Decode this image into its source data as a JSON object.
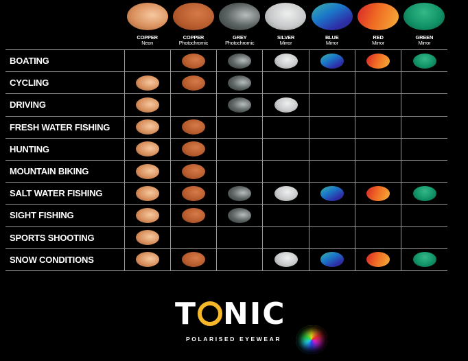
{
  "lenses": [
    {
      "name": "COPPER",
      "type": "Neon",
      "class": "copper-neon"
    },
    {
      "name": "COPPER",
      "type": "Photochromic",
      "class": "copper-photo"
    },
    {
      "name": "GREY",
      "type": "Photochromic",
      "class": "grey-photo"
    },
    {
      "name": "SILVER",
      "type": "Mirror",
      "class": "silver"
    },
    {
      "name": "BLUE",
      "type": "Mirror",
      "class": "blue"
    },
    {
      "name": "RED",
      "type": "Mirror",
      "class": "red"
    },
    {
      "name": "GREEN",
      "type": "Mirror",
      "class": "green"
    }
  ],
  "activities": [
    {
      "label": "BOATING",
      "lenses": [
        0,
        1,
        1,
        1,
        1,
        1,
        1
      ]
    },
    {
      "label": "CYCLING",
      "lenses": [
        1,
        1,
        1,
        0,
        0,
        0,
        0
      ]
    },
    {
      "label": "DRIVING",
      "lenses": [
        1,
        0,
        1,
        1,
        0,
        0,
        0
      ]
    },
    {
      "label": "FRESH WATER FISHING",
      "lenses": [
        1,
        1,
        0,
        0,
        0,
        0,
        0
      ]
    },
    {
      "label": "HUNTING",
      "lenses": [
        1,
        1,
        0,
        0,
        0,
        0,
        0
      ]
    },
    {
      "label": "MOUNTAIN BIKING",
      "lenses": [
        1,
        1,
        0,
        0,
        0,
        0,
        0
      ]
    },
    {
      "label": "SALT WATER FISHING",
      "lenses": [
        1,
        1,
        1,
        1,
        1,
        1,
        1
      ]
    },
    {
      "label": "SIGHT FISHING",
      "lenses": [
        1,
        1,
        1,
        0,
        0,
        0,
        0
      ]
    },
    {
      "label": "SPORTS SHOOTING",
      "lenses": [
        1,
        0,
        0,
        0,
        0,
        0,
        0
      ]
    },
    {
      "label": "SNOW CONDITIONS",
      "lenses": [
        1,
        1,
        0,
        1,
        1,
        1,
        1
      ]
    }
  ],
  "logo": {
    "brand": "TONIC",
    "tagline": "POLARISED EYEWEAR"
  }
}
